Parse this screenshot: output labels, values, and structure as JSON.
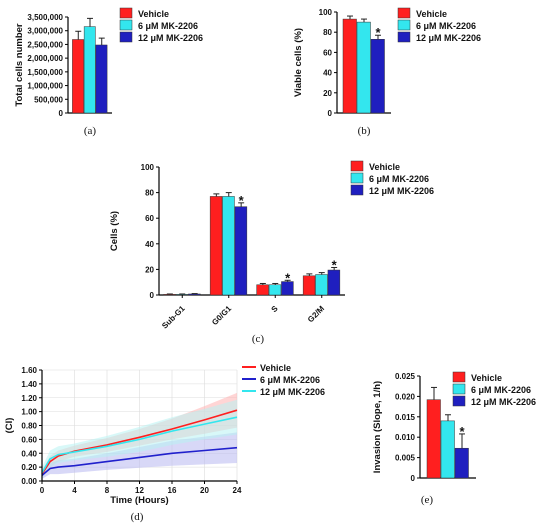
{
  "colors": {
    "vehicle": "#ff1f1f",
    "mk6": "#33e6ee",
    "mk12": "#1f1fbf"
  },
  "chart_data": [
    {
      "id": "a",
      "type": "bar",
      "caption": "(a)",
      "ylabel": "Total cells number",
      "ylim": [
        0,
        3500000
      ],
      "ytick_labels": [
        "0",
        "500,000",
        "1,000,000",
        "1,500,000",
        "2,000,000",
        "2,500,000",
        "3,000,000",
        "3,500,000"
      ],
      "categories": [
        ""
      ],
      "series": [
        {
          "name": "Vehicle",
          "color": "#ff1f1f",
          "values": [
            2680000
          ],
          "errors": [
            300000
          ]
        },
        {
          "name": "6 μM MK-2206",
          "color": "#33e6ee",
          "values": [
            3150000
          ],
          "errors": [
            300000
          ]
        },
        {
          "name": "12 μM MK-2206",
          "color": "#1f1fbf",
          "values": [
            2480000
          ],
          "errors": [
            250000
          ]
        }
      ],
      "legend": "right",
      "annotations": []
    },
    {
      "id": "b",
      "type": "bar",
      "caption": "(b)",
      "ylabel": "Viable cells (%)",
      "ylim": [
        0,
        100
      ],
      "ytick_labels": [
        "0",
        "20",
        "40",
        "60",
        "80",
        "100"
      ],
      "categories": [
        ""
      ],
      "series": [
        {
          "name": "Vehicle",
          "color": "#ff1f1f",
          "values": [
            93
          ],
          "errors": [
            3
          ]
        },
        {
          "name": "6 μM MK-2206",
          "color": "#33e6ee",
          "values": [
            90
          ],
          "errors": [
            3
          ]
        },
        {
          "name": "12 μM MK-2206",
          "color": "#1f1fbf",
          "values": [
            73
          ],
          "errors": [
            4
          ]
        }
      ],
      "legend": "right",
      "annotations": [
        {
          "text": "*",
          "series": 2,
          "category": 0
        }
      ]
    },
    {
      "id": "c",
      "type": "bar",
      "caption": "(c)",
      "ylabel": "Cells (%)",
      "ylim": [
        0,
        100
      ],
      "ytick_labels": [
        "0",
        "20",
        "40",
        "60",
        "80",
        "100"
      ],
      "categories": [
        "Sub-G1",
        "G0/G1",
        "S",
        "G2/M"
      ],
      "series": [
        {
          "name": "Vehicle",
          "color": "#ff1f1f",
          "values": [
            0.5,
            77,
            8,
            15
          ],
          "errors": [
            0.3,
            2,
            1,
            1.5
          ]
        },
        {
          "name": "6 μM MK-2206",
          "color": "#33e6ee",
          "values": [
            0.5,
            77,
            8,
            16
          ],
          "errors": [
            0.3,
            3,
            1,
            1.5
          ]
        },
        {
          "name": "12 μM MK-2206",
          "color": "#1f1fbf",
          "values": [
            0.8,
            69,
            10.5,
            19.5
          ],
          "errors": [
            0.3,
            3,
            1,
            2
          ]
        }
      ],
      "legend": "right",
      "annotations": [
        {
          "text": "*",
          "series": 2,
          "category": 1
        },
        {
          "text": "*",
          "series": 2,
          "category": 2
        },
        {
          "text": "*",
          "series": 2,
          "category": 3
        }
      ]
    },
    {
      "id": "d",
      "type": "line",
      "caption": "(d)",
      "xlabel": "Time (Hours)",
      "ylabel": "(CI)",
      "xlim": [
        0,
        24
      ],
      "ylim": [
        0,
        1.6
      ],
      "xticks": [
        0,
        4,
        8,
        12,
        16,
        20,
        24
      ],
      "ytick_labels": [
        "0.00",
        "0.20",
        "0.40",
        "0.60",
        "0.80",
        "1.00",
        "1.20",
        "1.40",
        "1.60"
      ],
      "grid": true,
      "legend": "top-right",
      "series": [
        {
          "name": "Vehicle",
          "color": "#ff1f1f",
          "band_color": "#ffb3b3",
          "x": [
            0,
            1,
            2,
            4,
            8,
            12,
            16,
            20,
            24
          ],
          "y": [
            0.1,
            0.28,
            0.36,
            0.43,
            0.52,
            0.63,
            0.75,
            0.88,
            1.02
          ],
          "err": [
            0.05,
            0.08,
            0.08,
            0.08,
            0.1,
            0.12,
            0.15,
            0.2,
            0.25
          ]
        },
        {
          "name": "6 μM MK-2206",
          "color": "#2020cc",
          "band_color": "#b8b8f0",
          "x": [
            0,
            1,
            2,
            4,
            8,
            12,
            16,
            20,
            24
          ],
          "y": [
            0.08,
            0.18,
            0.2,
            0.22,
            0.28,
            0.34,
            0.4,
            0.44,
            0.48
          ],
          "err": [
            0.05,
            0.08,
            0.1,
            0.1,
            0.12,
            0.15,
            0.18,
            0.2,
            0.22
          ]
        },
        {
          "name": "12 μM MK-2206",
          "color": "#33e6ee",
          "band_color": "#b8f2f2",
          "x": [
            0,
            1,
            2,
            4,
            8,
            12,
            16,
            20,
            24
          ],
          "y": [
            0.12,
            0.32,
            0.38,
            0.42,
            0.5,
            0.6,
            0.72,
            0.82,
            0.92
          ],
          "err": [
            0.08,
            0.12,
            0.12,
            0.12,
            0.15,
            0.18,
            0.2,
            0.22,
            0.25
          ]
        }
      ]
    },
    {
      "id": "e",
      "type": "bar",
      "caption": "(e)",
      "ylabel": "Invasion (Slope, 1/h)",
      "ylim": [
        0,
        0.025
      ],
      "ytick_labels": [
        "0",
        "0.005",
        "0.010",
        "0.015",
        "0.020",
        "0.025"
      ],
      "categories": [
        ""
      ],
      "series": [
        {
          "name": "Vehicle",
          "color": "#ff1f1f",
          "values": [
            0.0192
          ],
          "errors": [
            0.003
          ]
        },
        {
          "name": "6 μM MK-2206",
          "color": "#33e6ee",
          "values": [
            0.014
          ],
          "errors": [
            0.0015
          ]
        },
        {
          "name": "12 μM MK-2206",
          "color": "#1f1fbf",
          "values": [
            0.0073
          ],
          "errors": [
            0.0035
          ]
        }
      ],
      "legend": "right",
      "annotations": [
        {
          "text": "*",
          "series": 2,
          "category": 0
        }
      ]
    }
  ]
}
